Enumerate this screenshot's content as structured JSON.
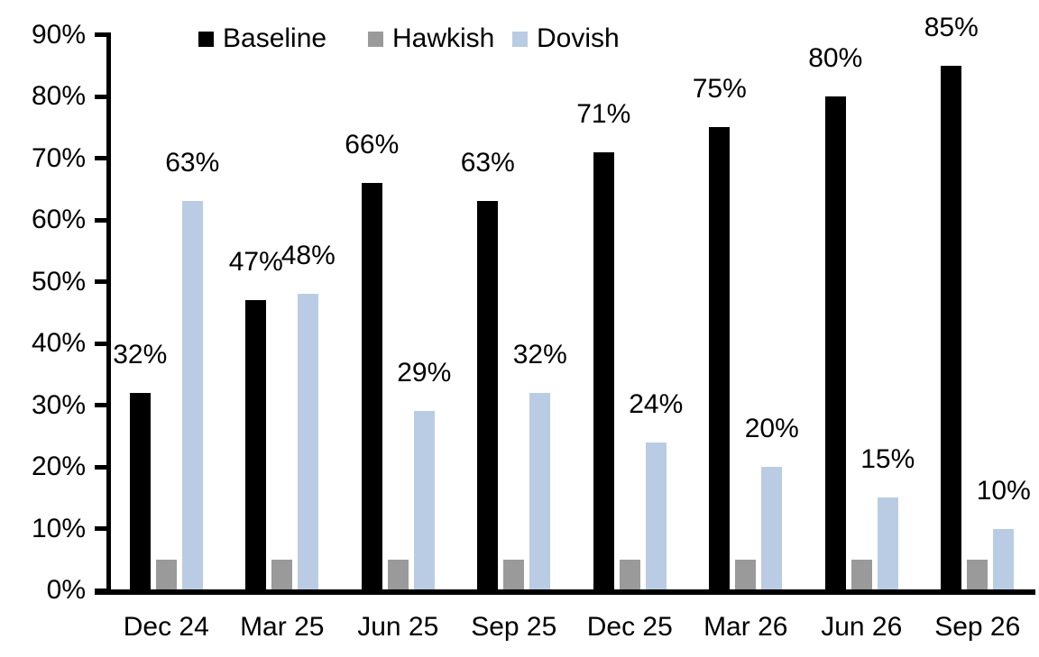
{
  "chart_data": {
    "type": "bar",
    "title": "",
    "xlabel": "",
    "ylabel": "",
    "categories": [
      "Dec 24",
      "Mar 25",
      "Jun 25",
      "Sep 25",
      "Dec 25",
      "Mar 26",
      "Jun 26",
      "Sep 26"
    ],
    "series": [
      {
        "name": "Baseline",
        "color": "#000000",
        "values": [
          32,
          47,
          66,
          63,
          71,
          75,
          80,
          85
        ],
        "data_labels": [
          "32%",
          "47%",
          "66%",
          "63%",
          "71%",
          "75%",
          "80%",
          "85%"
        ]
      },
      {
        "name": "Hawkish",
        "color": "#9A9A9A",
        "values": [
          5,
          5,
          5,
          5,
          5,
          5,
          5,
          5
        ],
        "data_labels": []
      },
      {
        "name": "Dovish",
        "color": "#B9CCE4",
        "values": [
          63,
          48,
          29,
          32,
          24,
          20,
          15,
          10
        ],
        "data_labels": [
          "63%",
          "48%",
          "29%",
          "32%",
          "24%",
          "20%",
          "15%",
          "10%"
        ]
      }
    ],
    "ylim": [
      0,
      90
    ],
    "ytick_step": 10,
    "ytick_labels": [
      "0%",
      "10%",
      "20%",
      "30%",
      "40%",
      "50%",
      "60%",
      "70%",
      "80%",
      "90%"
    ],
    "grid": false,
    "legend_position": "top",
    "background_color": "#FFFFFF",
    "axis_color": "#000000",
    "text_color": "#000000"
  }
}
